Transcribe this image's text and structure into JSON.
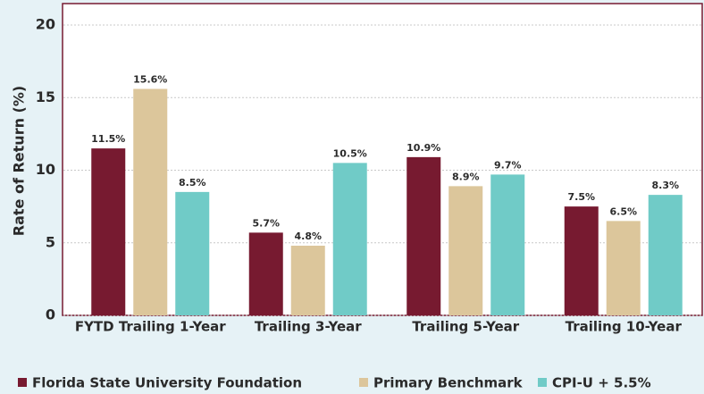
{
  "chart_data": {
    "type": "bar",
    "y_label": "Rate of Return (%)",
    "categories": [
      "FYTD Trailing 1-Year",
      "Trailing 3-Year",
      "Trailing 5-Year",
      "Trailing 10-Year"
    ],
    "series": [
      {
        "name": "Florida State University Foundation",
        "color": "#771a30",
        "values": [
          11.5,
          5.7,
          10.9,
          7.5
        ],
        "value_labels": [
          "11.5%",
          "5.7%",
          "10.9%",
          "7.5%"
        ]
      },
      {
        "name": "Primary Benchmark",
        "color": "#dcc69b",
        "values": [
          15.6,
          4.8,
          8.9,
          6.5
        ],
        "value_labels": [
          "15.6%",
          "4.8%",
          "8.9%",
          "6.5%"
        ]
      },
      {
        "name": "CPI-U + 5.5%",
        "color": "#70cbc7",
        "values": [
          8.5,
          10.5,
          9.7,
          8.3
        ],
        "value_labels": [
          "8.5%",
          "10.5%",
          "9.7%",
          "8.3%"
        ]
      }
    ],
    "ylim": [
      0,
      20
    ],
    "yticks": [
      0,
      5,
      10,
      15,
      20
    ],
    "grid": true,
    "legend": "bottom"
  }
}
